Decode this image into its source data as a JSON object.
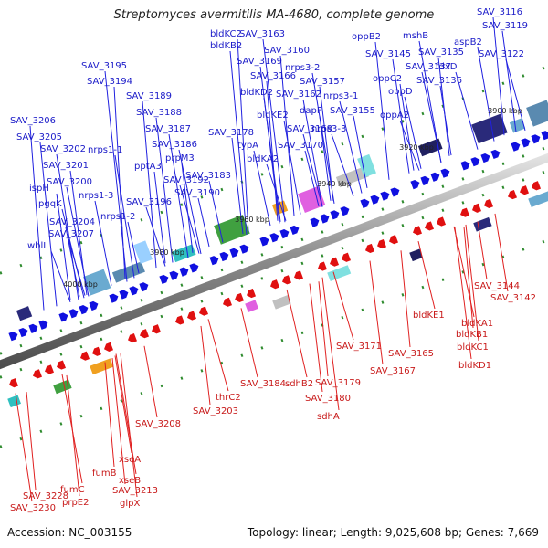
{
  "title": "Streptomyces avermitilis MA-4680, complete genome",
  "footer": {
    "accession": "Accession: NC_003155",
    "stats": "Topology: linear; Length: 9,025,608 bp; Genes: 7,669"
  },
  "kbp_ticks": [
    "3900 kbp",
    "3920 kbp",
    "3940 kbp",
    "3960 kbp",
    "3980 kbp",
    "4000 kbp"
  ],
  "upper_labels": [
    "SAV_3116",
    "SAV_3119",
    "aspB2",
    "SAV_3122",
    "mshB",
    "SAV_3135",
    "oppB2",
    "SAV_3145",
    "SAV_3137",
    "fdxD",
    "SAV_3136",
    "oppC2",
    "oppD",
    "oppA2",
    "SAV_3163",
    "bldKC2",
    "SAV_3160",
    "bldKB2",
    "SAV_3169",
    "nrps3-2",
    "SAV_3166",
    "SAV_3157",
    "bldKD2",
    "SAV_3162",
    "nrps3-1",
    "dapF",
    "SAV_3155",
    "bldKE2",
    "SAV_3168",
    "nrps3-3",
    "SAV_3178",
    "SAV_3170",
    "typA",
    "bldKA2",
    "SAV_3195",
    "SAV_3194",
    "SAV_3189",
    "SAV_3188",
    "SAV_3187",
    "SAV_3186",
    "prpM3",
    "SAV_3206",
    "SAV_3205",
    "nrps1-1",
    "SAV_3202",
    "pptA3",
    "SAV_3183",
    "SAV_3201",
    "SAV_3192",
    "SAV_3200",
    "SAV_3190",
    "ispH",
    "nrps1-3",
    "SAV_3196",
    "pgqK",
    "nrps1-2",
    "SAV_3204",
    "SAV_3207",
    "wblI"
  ],
  "lower_labels": [
    "SAV_3144",
    "SAV_3142",
    "bldKE1",
    "bldKA1",
    "bldKB1",
    "bldKC1",
    "bldKD1",
    "SAV_3171",
    "SAV_3165",
    "SAV_3167",
    "SAV_3184",
    "sdhB2",
    "SAV_3179",
    "SAV_3180",
    "sdhA",
    "thrC2",
    "SAV_3203",
    "SAV_3208",
    "xseA",
    "xseB",
    "fumB",
    "SAV_3213",
    "glpX",
    "fumC",
    "SAV_3228",
    "prpE2",
    "SAV_3230"
  ]
}
